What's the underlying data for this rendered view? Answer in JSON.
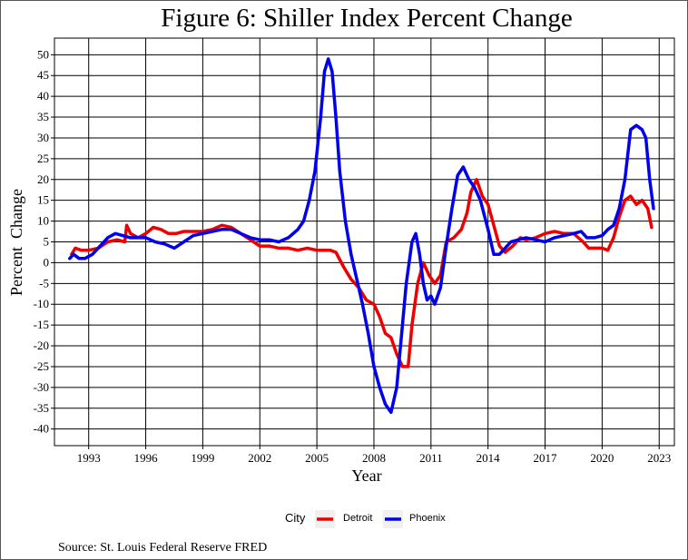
{
  "figure_title": "Figure 6: Shiller Index Percent Change",
  "source_note": "Source: St. Louis Federal Reserve FRED",
  "legend": {
    "title": "City",
    "items": [
      {
        "label": "Detroit",
        "color": "#ee0000"
      },
      {
        "label": "Phoenix",
        "color": "#0000ee"
      }
    ]
  },
  "chart_data": {
    "type": "line",
    "title": "Figure 6: Shiller Index Percent Change",
    "xlabel": "Year",
    "ylabel": "Percent  Change",
    "xlim": [
      1991.2,
      2023.8
    ],
    "ylim": [
      -44,
      54
    ],
    "x_ticks": [
      1993,
      1996,
      1999,
      2002,
      2005,
      2008,
      2011,
      2014,
      2017,
      2020,
      2023
    ],
    "y_ticks": [
      -40,
      -35,
      -30,
      -25,
      -20,
      -15,
      -10,
      -5,
      0,
      5,
      10,
      15,
      20,
      25,
      30,
      35,
      40,
      45,
      50
    ],
    "grid": true,
    "legend_position": "bottom",
    "series": [
      {
        "name": "Detroit",
        "color": "#ee0000",
        "x": [
          1992.1,
          1992.3,
          1992.6,
          1993.0,
          1993.5,
          1994.0,
          1994.5,
          1994.9,
          1995.0,
          1995.2,
          1995.6,
          1996.0,
          1996.4,
          1996.8,
          1997.2,
          1997.6,
          1998.0,
          1998.5,
          1999.0,
          1999.5,
          2000.0,
          2000.5,
          2001.0,
          2001.5,
          2002.0,
          2002.5,
          2003.0,
          2003.5,
          2004.0,
          2004.5,
          2005.0,
          2005.4,
          2005.7,
          2006.0,
          2006.4,
          2006.8,
          2007.2,
          2007.6,
          2008.0,
          2008.3,
          2008.6,
          2008.9,
          2009.2,
          2009.5,
          2009.8,
          2010.0,
          2010.3,
          2010.6,
          2010.9,
          2011.2,
          2011.5,
          2011.8,
          2012.2,
          2012.6,
          2012.9,
          2013.1,
          2013.4,
          2013.7,
          2014.0,
          2014.3,
          2014.6,
          2014.9,
          2015.3,
          2015.7,
          2016.0,
          2016.5,
          2017.0,
          2017.5,
          2018.0,
          2018.5,
          2019.0,
          2019.3,
          2019.6,
          2020.0,
          2020.3,
          2020.6,
          2020.9,
          2021.2,
          2021.5,
          2021.8,
          2022.1,
          2022.4,
          2022.6
        ],
        "values": [
          2,
          3.5,
          3,
          3,
          3.5,
          5,
          5.5,
          5,
          9,
          7,
          6,
          7,
          8.5,
          8,
          7,
          7,
          7.5,
          7.5,
          7.5,
          8,
          9,
          8.5,
          7,
          5.5,
          4,
          4,
          3.5,
          3.5,
          3,
          3.5,
          3,
          3,
          3,
          2.5,
          -1,
          -4,
          -6,
          -9,
          -10,
          -13,
          -17,
          -18,
          -22,
          -25,
          -25,
          -15,
          -5,
          0,
          -3,
          -5,
          -3,
          5,
          6,
          8,
          12,
          17,
          20,
          16,
          14,
          9,
          4,
          2.5,
          4,
          6,
          5.5,
          6,
          7,
          7.5,
          7,
          7,
          5,
          3.5,
          3.5,
          3.5,
          3,
          6,
          11,
          15,
          16,
          14,
          15,
          13,
          8.5
        ]
      },
      {
        "name": "Phoenix",
        "color": "#0000ee",
        "x": [
          1992.0,
          1992.2,
          1992.5,
          1992.8,
          1993.2,
          1993.6,
          1994.0,
          1994.4,
          1994.8,
          1995.2,
          1995.6,
          1996.0,
          1996.5,
          1997.0,
          1997.5,
          1998.0,
          1998.5,
          1999.0,
          1999.5,
          2000.0,
          2000.5,
          2001.0,
          2001.5,
          2002.0,
          2002.5,
          2003.0,
          2003.5,
          2004.0,
          2004.3,
          2004.6,
          2004.9,
          2005.2,
          2005.4,
          2005.6,
          2005.8,
          2006.0,
          2006.2,
          2006.5,
          2006.8,
          2007.1,
          2007.4,
          2007.7,
          2008.0,
          2008.3,
          2008.6,
          2008.9,
          2009.2,
          2009.5,
          2009.7,
          2010.0,
          2010.2,
          2010.4,
          2010.6,
          2010.8,
          2011.0,
          2011.2,
          2011.5,
          2011.8,
          2012.1,
          2012.4,
          2012.7,
          2013.0,
          2013.3,
          2013.6,
          2014.0,
          2014.3,
          2014.6,
          2014.9,
          2015.2,
          2015.6,
          2016.0,
          2016.5,
          2017.0,
          2017.5,
          2018.0,
          2018.5,
          2018.9,
          2019.2,
          2019.6,
          2020.0,
          2020.3,
          2020.6,
          2020.9,
          2021.2,
          2021.5,
          2021.8,
          2022.1,
          2022.3,
          2022.5,
          2022.7
        ],
        "values": [
          1,
          2,
          1,
          1,
          2,
          4,
          6,
          7,
          6.5,
          6,
          6,
          6,
          5,
          4.5,
          3.5,
          5,
          6.5,
          7,
          7.5,
          8,
          8,
          7,
          6,
          5.5,
          5.5,
          5,
          6,
          8,
          10,
          15,
          22,
          35,
          46,
          49,
          46,
          35,
          22,
          10,
          2,
          -4,
          -10,
          -17,
          -25,
          -30,
          -34,
          -36,
          -30,
          -15,
          -5,
          5,
          7,
          2,
          -5,
          -9,
          -8,
          -10,
          -6,
          4,
          13,
          21,
          23,
          20,
          18,
          15,
          8,
          2,
          2,
          3.5,
          5,
          5.5,
          6,
          5.5,
          5,
          6,
          6.5,
          7,
          7.5,
          6,
          6,
          6.5,
          8,
          9,
          13,
          20,
          32,
          33,
          32,
          30,
          20,
          13
        ]
      }
    ]
  }
}
